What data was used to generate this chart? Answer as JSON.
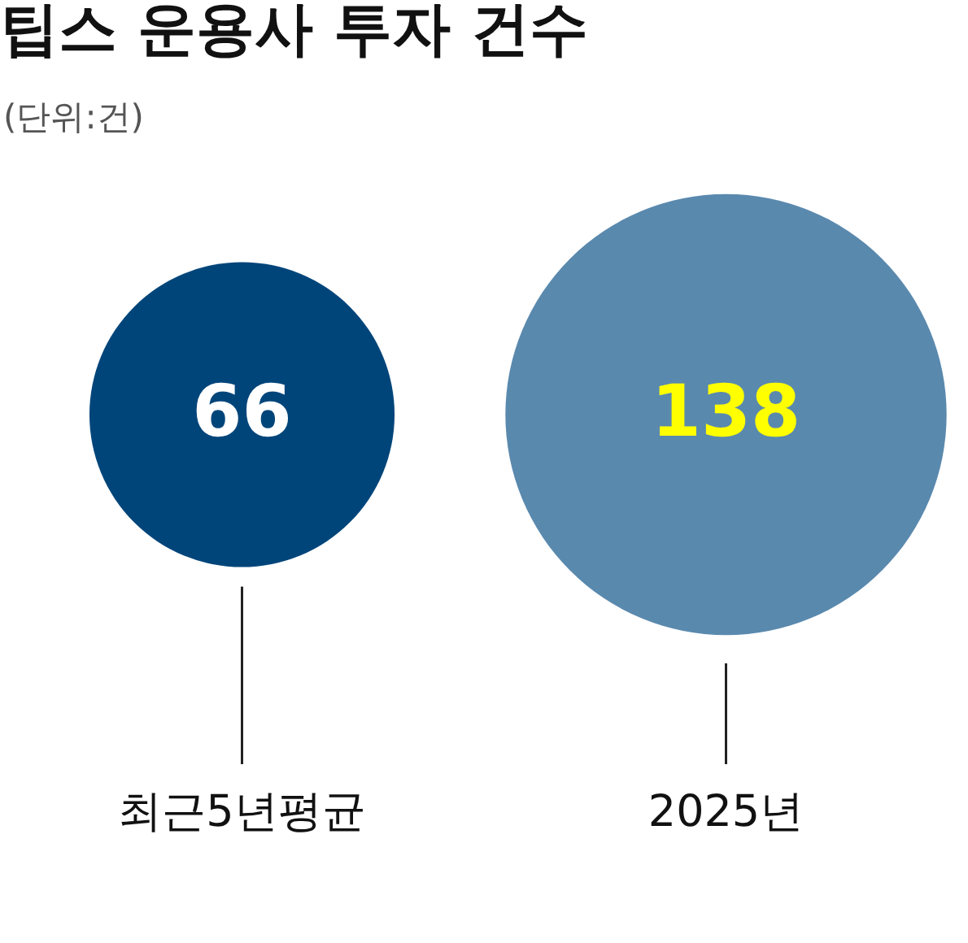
{
  "chart_data": {
    "type": "other",
    "title": "팁스 운용사 투자 건수",
    "subtitle": "(단위:건)",
    "categories": [
      "최근5년평균",
      "2025년"
    ],
    "values": [
      66,
      138
    ],
    "colors": [
      "#00457a",
      "#5a89ae"
    ],
    "data_labels": true
  }
}
